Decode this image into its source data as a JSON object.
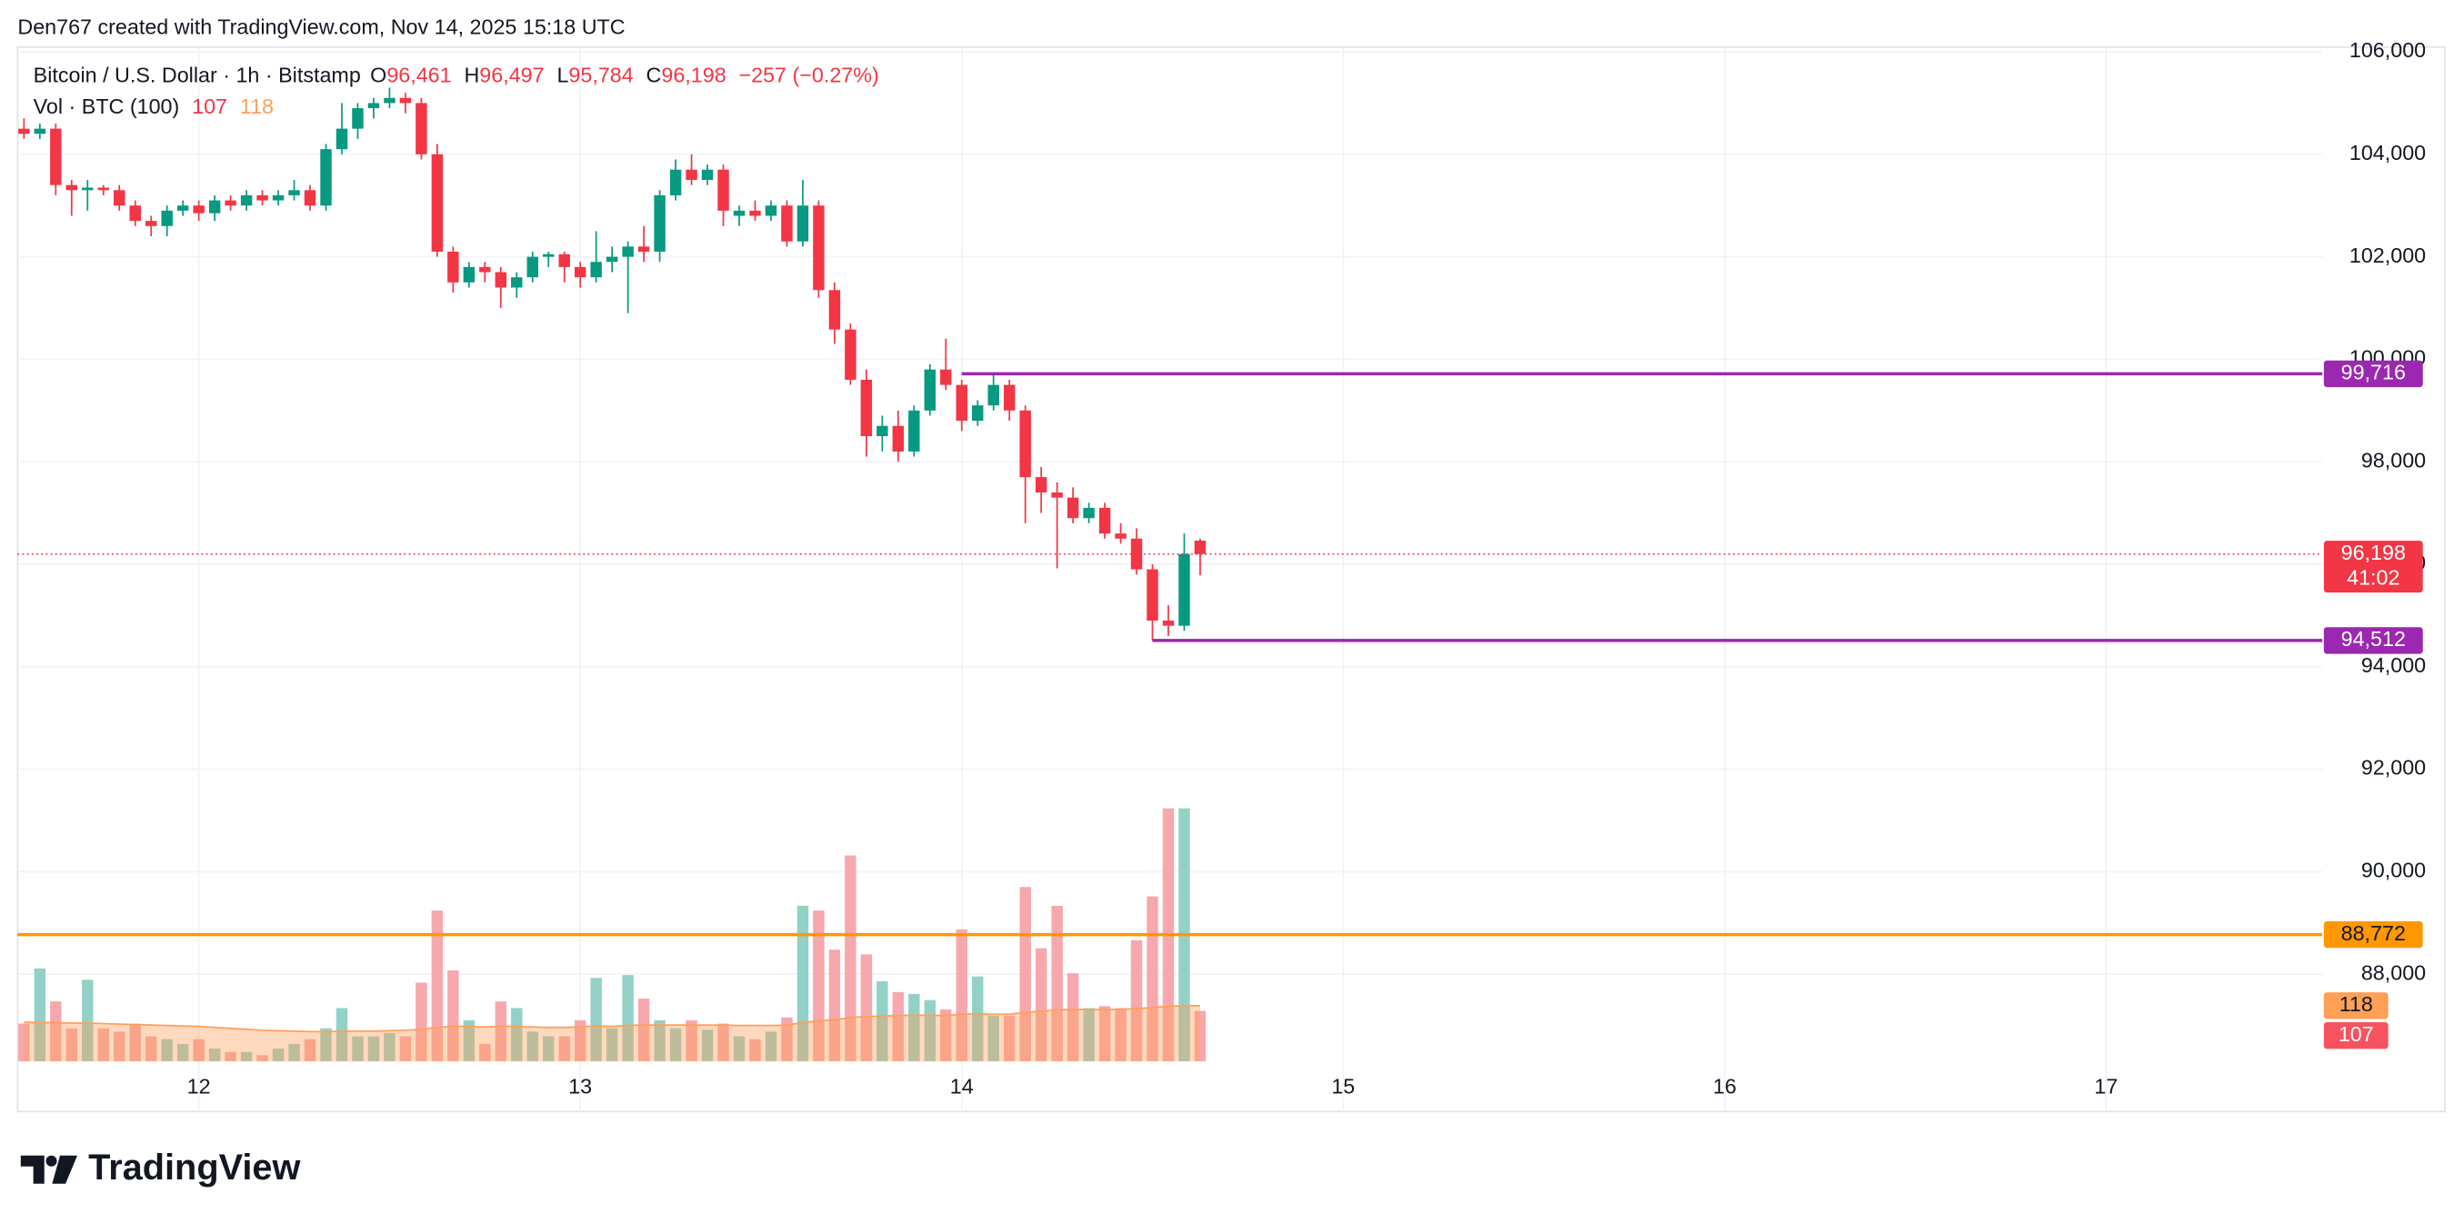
{
  "chart_data": {
    "type": "candlestick",
    "credit": "Den767 created with TradingView.com, Nov 14, 2025 15:18 UTC",
    "brand": "TradingView",
    "legend": {
      "symbol": "Bitcoin / U.S. Dollar · 1h · Bitstamp",
      "ohlc": [
        [
          "O",
          "96,461"
        ],
        [
          "H",
          "96,497"
        ],
        [
          "L",
          "95,784"
        ],
        [
          "C",
          "96,198"
        ]
      ],
      "change": "−257 (−0.27%)"
    },
    "up_color": "#089981",
    "down_color": "#f23645",
    "grid": true,
    "x": [
      13,
      14,
      15,
      16,
      17,
      18,
      19,
      20,
      21,
      22,
      23,
      24,
      25,
      26,
      27,
      28,
      29,
      30,
      31,
      32,
      33,
      34,
      35,
      36,
      37,
      38,
      39,
      40,
      41,
      42,
      43,
      44,
      45,
      46,
      47,
      48,
      49,
      50,
      51,
      52,
      53,
      54,
      55,
      56,
      57,
      58,
      59,
      60,
      61,
      62,
      63,
      64,
      65,
      66,
      67,
      68,
      69,
      70,
      71,
      72,
      73,
      74,
      75,
      76,
      77,
      78,
      79,
      80,
      81,
      82,
      83,
      84,
      85,
      86,
      87
    ],
    "xlim": [
      12.6,
      157.6
    ],
    "xticks": [
      {
        "value": 24,
        "label": "12"
      },
      {
        "value": 48,
        "label": "13"
      },
      {
        "value": 72,
        "label": "14"
      },
      {
        "value": 96,
        "label": "15"
      },
      {
        "value": 120,
        "label": "16"
      },
      {
        "value": 144,
        "label": "17"
      }
    ],
    "open": [
      104500,
      104400,
      104500,
      103400,
      103300,
      103350,
      103300,
      103000,
      102700,
      102600,
      102900,
      103000,
      102850,
      103100,
      103000,
      103200,
      103100,
      103200,
      103300,
      103000,
      104100,
      104500,
      104900,
      105000,
      105100,
      105000,
      104000,
      102100,
      101500,
      101800,
      101700,
      101400,
      101600,
      102000,
      102050,
      101800,
      101600,
      101900,
      102000,
      102200,
      102100,
      103200,
      103700,
      103500,
      103700,
      102800,
      102900,
      102800,
      103000,
      102300,
      103000,
      101350,
      100580,
      99600,
      98500,
      98700,
      98200,
      99000,
      99800,
      99500,
      98800,
      99100,
      99500,
      99000,
      97700,
      97400,
      97300,
      96900,
      97100,
      96600,
      96500,
      95900,
      94900,
      94800,
      96461
    ],
    "high": [
      104700,
      104600,
      104600,
      103500,
      103500,
      103400,
      103400,
      103100,
      102800,
      103000,
      103100,
      103100,
      103200,
      103200,
      103300,
      103300,
      103300,
      103500,
      103400,
      104200,
      105000,
      105000,
      105100,
      105300,
      105200,
      105100,
      104200,
      102200,
      101900,
      101900,
      101800,
      101700,
      102100,
      102100,
      102100,
      101900,
      102500,
      102200,
      102300,
      102600,
      103300,
      103900,
      104000,
      103800,
      103800,
      103000,
      103100,
      103100,
      103100,
      103500,
      103100,
      101500,
      100700,
      99800,
      98900,
      99000,
      99100,
      99900,
      100400,
      99600,
      99200,
      99716,
      99600,
      99100,
      97900,
      97600,
      97500,
      97200,
      97200,
      96800,
      96700,
      96000,
      95200,
      96600,
      96497
    ],
    "low": [
      104300,
      104300,
      103200,
      102800,
      102900,
      103200,
      102900,
      102600,
      102400,
      102400,
      102800,
      102700,
      102700,
      102900,
      102900,
      103000,
      103000,
      103100,
      102900,
      102900,
      104000,
      104300,
      104700,
      104900,
      104800,
      103900,
      102000,
      101300,
      101400,
      101500,
      101000,
      101200,
      101500,
      101800,
      101500,
      101400,
      101500,
      101700,
      100900,
      101900,
      101900,
      103100,
      103400,
      103400,
      102600,
      102600,
      102700,
      102700,
      102200,
      102200,
      101200,
      100300,
      99500,
      98100,
      98200,
      98000,
      98100,
      98900,
      99400,
      98600,
      98700,
      99000,
      98800,
      96800,
      97000,
      95920,
      96800,
      96800,
      96500,
      96400,
      95800,
      94512,
      94600,
      94700,
      95784
    ],
    "close": [
      104400,
      104500,
      103400,
      103300,
      103350,
      103300,
      103000,
      102700,
      102600,
      102900,
      103000,
      102850,
      103100,
      103000,
      103200,
      103100,
      103200,
      103300,
      103000,
      104100,
      104500,
      104900,
      105000,
      105100,
      105000,
      104000,
      102100,
      101500,
      101800,
      101700,
      101400,
      101600,
      102000,
      102050,
      101800,
      101600,
      101900,
      102000,
      102200,
      102100,
      103200,
      103700,
      103500,
      103700,
      102900,
      102900,
      102800,
      103000,
      102300,
      103000,
      101350,
      100580,
      99600,
      98500,
      98700,
      98200,
      99000,
      99800,
      99500,
      98800,
      99100,
      99500,
      99000,
      97700,
      97400,
      97300,
      96900,
      97100,
      96600,
      96500,
      95900,
      94900,
      94800,
      96200,
      96198
    ],
    "ylim": [
      86300,
      106000
    ],
    "yticks": [
      {
        "value": 106000,
        "label": "106,000"
      },
      {
        "value": 104000,
        "label": "104,000"
      },
      {
        "value": 102000,
        "label": "102,000"
      },
      {
        "value": 100000,
        "label": "100,000"
      },
      {
        "value": 98000,
        "label": "98,000"
      },
      {
        "value": 96000,
        "label": "96,000"
      },
      {
        "value": 94000,
        "label": "94,000"
      },
      {
        "value": 92000,
        "label": "92,000"
      },
      {
        "value": 90000,
        "label": "90,000"
      },
      {
        "value": 88000,
        "label": "88,000"
      }
    ],
    "levels": [
      {
        "value": 99716,
        "label": "99,716",
        "from": 72,
        "color": "#9c27b0",
        "text_color": "#ffffff"
      },
      {
        "value": 94512,
        "label": "94,512",
        "from": 84,
        "color": "#9c27b0",
        "text_color": "#ffffff"
      },
      {
        "value": 88772,
        "label": "88,772",
        "color": "#ff9800",
        "text_color": "#131722"
      }
    ],
    "last": {
      "value": 96198,
      "label": "96,198",
      "countdown": "41:02",
      "color": "#f23645"
    },
    "volume": {
      "name": "Vol · BTC (100)",
      "lim": [
        0,
        2143
      ],
      "up_color": "#93d1c7",
      "down_color": "#f7a8ac",
      "ma_color": "#ff9f5a",
      "ma_badge_color": "#ffa057",
      "badge_color": "#f7525f",
      "values": [
        80,
        197,
        127,
        70,
        173,
        70,
        63,
        80,
        53,
        47,
        37,
        47,
        27,
        20,
        20,
        13,
        27,
        37,
        47,
        70,
        113,
        53,
        53,
        60,
        53,
        167,
        320,
        193,
        87,
        37,
        127,
        113,
        63,
        53,
        53,
        87,
        177,
        70,
        183,
        133,
        87,
        70,
        87,
        67,
        80,
        53,
        47,
        63,
        93,
        330,
        320,
        237,
        437,
        227,
        170,
        147,
        143,
        130,
        110,
        280,
        180,
        97,
        97,
        370,
        240,
        330,
        187,
        113,
        117,
        113,
        257,
        350,
        537,
        537,
        107
      ],
      "ma_values": [
        83,
        82,
        82,
        81,
        81,
        80,
        79,
        78,
        77,
        76,
        75,
        74,
        72,
        70,
        68,
        66,
        65,
        64,
        63,
        63,
        64,
        64,
        64,
        65,
        66,
        68,
        72,
        74,
        74,
        73,
        74,
        74,
        73,
        72,
        72,
        73,
        75,
        74,
        76,
        77,
        77,
        77,
        77,
        77,
        77,
        76,
        76,
        76,
        77,
        82,
        86,
        88,
        93,
        95,
        96,
        97,
        98,
        98,
        97,
        100,
        101,
        100,
        100,
        104,
        106,
        109,
        110,
        110,
        110,
        110,
        112,
        114,
        117,
        118,
        118
      ]
    }
  }
}
